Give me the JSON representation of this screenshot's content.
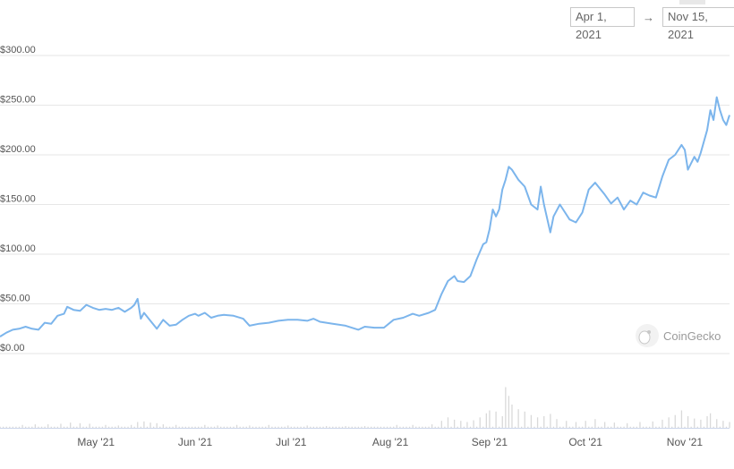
{
  "date_range": {
    "start": "Apr 1, 2021",
    "arrow": "→",
    "end": "Nov 15, 2021"
  },
  "watermark": {
    "text": "CoinGecko",
    "icon": "gecko-logo-icon"
  },
  "colors": {
    "price_line": "#7cb5ec",
    "volume_bar": "#d9d9d9",
    "grid": "#e6e6e6",
    "axis": "#ccd6eb"
  },
  "chart_data": {
    "type": "line",
    "title": "",
    "xlabel": "",
    "ylabel": "",
    "ylim": [
      0,
      300
    ],
    "y_ticks": [
      {
        "value": 300,
        "label": "$300.00"
      },
      {
        "value": 250,
        "label": "$250.00"
      },
      {
        "value": 200,
        "label": "$200.00"
      },
      {
        "value": 150,
        "label": "$150.00"
      },
      {
        "value": 100,
        "label": "$100.00"
      },
      {
        "value": 50,
        "label": "$50.00"
      },
      {
        "value": 0,
        "label": "$0.00"
      }
    ],
    "x_ticks": [
      {
        "date": "2021-05-01",
        "label": "May '21"
      },
      {
        "date": "2021-06-01",
        "label": "Jun '21"
      },
      {
        "date": "2021-07-01",
        "label": "Jul '21"
      },
      {
        "date": "2021-08-01",
        "label": "Aug '21"
      },
      {
        "date": "2021-09-01",
        "label": "Sep '21"
      },
      {
        "date": "2021-10-01",
        "label": "Oct '21"
      },
      {
        "date": "2021-11-01",
        "label": "Nov '21"
      }
    ],
    "grid": true,
    "legend": "none",
    "series": [
      {
        "values": [
          [
            "2021-04-01",
            17
          ],
          [
            "2021-04-03",
            21
          ],
          [
            "2021-04-05",
            24
          ],
          [
            "2021-04-07",
            25
          ],
          [
            "2021-04-09",
            27
          ],
          [
            "2021-04-11",
            25
          ],
          [
            "2021-04-13",
            24
          ],
          [
            "2021-04-15",
            31
          ],
          [
            "2021-04-17",
            30
          ],
          [
            "2021-04-19",
            38
          ],
          [
            "2021-04-21",
            40
          ],
          [
            "2021-04-22",
            47
          ],
          [
            "2021-04-24",
            44
          ],
          [
            "2021-04-26",
            43
          ],
          [
            "2021-04-28",
            49
          ],
          [
            "2021-04-30",
            46
          ],
          [
            "2021-05-02",
            44
          ],
          [
            "2021-05-04",
            45
          ],
          [
            "2021-05-06",
            44
          ],
          [
            "2021-05-08",
            46
          ],
          [
            "2021-05-10",
            42
          ],
          [
            "2021-05-12",
            46
          ],
          [
            "2021-05-13",
            49
          ],
          [
            "2021-05-14",
            55
          ],
          [
            "2021-05-15",
            35
          ],
          [
            "2021-05-16",
            41
          ],
          [
            "2021-05-18",
            33
          ],
          [
            "2021-05-20",
            25
          ],
          [
            "2021-05-22",
            34
          ],
          [
            "2021-05-24",
            28
          ],
          [
            "2021-05-26",
            29
          ],
          [
            "2021-05-28",
            34
          ],
          [
            "2021-05-30",
            38
          ],
          [
            "2021-06-01",
            40
          ],
          [
            "2021-06-02",
            38
          ],
          [
            "2021-06-04",
            41
          ],
          [
            "2021-06-06",
            36
          ],
          [
            "2021-06-08",
            38
          ],
          [
            "2021-06-10",
            39
          ],
          [
            "2021-06-13",
            38
          ],
          [
            "2021-06-16",
            35
          ],
          [
            "2021-06-18",
            28
          ],
          [
            "2021-06-21",
            30
          ],
          [
            "2021-06-24",
            31
          ],
          [
            "2021-06-27",
            33
          ],
          [
            "2021-06-30",
            34
          ],
          [
            "2021-07-03",
            34
          ],
          [
            "2021-07-06",
            33
          ],
          [
            "2021-07-08",
            35
          ],
          [
            "2021-07-10",
            32
          ],
          [
            "2021-07-14",
            30
          ],
          [
            "2021-07-18",
            28
          ],
          [
            "2021-07-21",
            25
          ],
          [
            "2021-07-22",
            24
          ],
          [
            "2021-07-24",
            27
          ],
          [
            "2021-07-27",
            26
          ],
          [
            "2021-07-30",
            26
          ],
          [
            "2021-08-02",
            34
          ],
          [
            "2021-08-05",
            36
          ],
          [
            "2021-08-08",
            40
          ],
          [
            "2021-08-10",
            38
          ],
          [
            "2021-08-13",
            41
          ],
          [
            "2021-08-15",
            44
          ],
          [
            "2021-08-17",
            60
          ],
          [
            "2021-08-19",
            73
          ],
          [
            "2021-08-21",
            78
          ],
          [
            "2021-08-22",
            73
          ],
          [
            "2021-08-24",
            72
          ],
          [
            "2021-08-26",
            78
          ],
          [
            "2021-08-28",
            95
          ],
          [
            "2021-08-30",
            110
          ],
          [
            "2021-08-31",
            112
          ],
          [
            "2021-09-01",
            125
          ],
          [
            "2021-09-02",
            145
          ],
          [
            "2021-09-03",
            138
          ],
          [
            "2021-09-04",
            145
          ],
          [
            "2021-09-05",
            165
          ],
          [
            "2021-09-06",
            175
          ],
          [
            "2021-09-07",
            188
          ],
          [
            "2021-09-08",
            185
          ],
          [
            "2021-09-10",
            175
          ],
          [
            "2021-09-12",
            168
          ],
          [
            "2021-09-14",
            150
          ],
          [
            "2021-09-16",
            145
          ],
          [
            "2021-09-17",
            168
          ],
          [
            "2021-09-18",
            150
          ],
          [
            "2021-09-20",
            122
          ],
          [
            "2021-09-21",
            138
          ],
          [
            "2021-09-23",
            150
          ],
          [
            "2021-09-26",
            135
          ],
          [
            "2021-09-28",
            132
          ],
          [
            "2021-09-30",
            142
          ],
          [
            "2021-10-02",
            165
          ],
          [
            "2021-10-04",
            172
          ],
          [
            "2021-10-07",
            160
          ],
          [
            "2021-10-09",
            151
          ],
          [
            "2021-10-11",
            157
          ],
          [
            "2021-10-13",
            145
          ],
          [
            "2021-10-15",
            154
          ],
          [
            "2021-10-17",
            150
          ],
          [
            "2021-10-19",
            162
          ],
          [
            "2021-10-21",
            159
          ],
          [
            "2021-10-23",
            157
          ],
          [
            "2021-10-25",
            178
          ],
          [
            "2021-10-27",
            195
          ],
          [
            "2021-10-29",
            200
          ],
          [
            "2021-10-31",
            210
          ],
          [
            "2021-11-01",
            205
          ],
          [
            "2021-11-02",
            185
          ],
          [
            "2021-11-04",
            198
          ],
          [
            "2021-11-05",
            193
          ],
          [
            "2021-11-06",
            202
          ],
          [
            "2021-11-08",
            225
          ],
          [
            "2021-11-09",
            245
          ],
          [
            "2021-11-10",
            235
          ],
          [
            "2021-11-11",
            258
          ],
          [
            "2021-11-12",
            245
          ],
          [
            "2021-11-13",
            235
          ],
          [
            "2021-11-14",
            230
          ],
          [
            "2021-11-15",
            240
          ]
        ]
      }
    ],
    "volume": {
      "max": 100,
      "values": [
        [
          "2021-04-08",
          5
        ],
        [
          "2021-04-12",
          6
        ],
        [
          "2021-04-16",
          6
        ],
        [
          "2021-04-20",
          7
        ],
        [
          "2021-04-23",
          9
        ],
        [
          "2021-04-26",
          8
        ],
        [
          "2021-04-29",
          7
        ],
        [
          "2021-05-04",
          5
        ],
        [
          "2021-05-08",
          4
        ],
        [
          "2021-05-12",
          5
        ],
        [
          "2021-05-14",
          10
        ],
        [
          "2021-05-16",
          11
        ],
        [
          "2021-05-18",
          9
        ],
        [
          "2021-05-20",
          8
        ],
        [
          "2021-05-22",
          6
        ],
        [
          "2021-05-26",
          5
        ],
        [
          "2021-06-04",
          5
        ],
        [
          "2021-06-08",
          4
        ],
        [
          "2021-06-14",
          5
        ],
        [
          "2021-06-18",
          4
        ],
        [
          "2021-06-24",
          5
        ],
        [
          "2021-06-30",
          4
        ],
        [
          "2021-07-06",
          4
        ],
        [
          "2021-07-12",
          3
        ],
        [
          "2021-07-18",
          3
        ],
        [
          "2021-07-24",
          3
        ],
        [
          "2021-08-03",
          5
        ],
        [
          "2021-08-08",
          5
        ],
        [
          "2021-08-14",
          6
        ],
        [
          "2021-08-17",
          12
        ],
        [
          "2021-08-19",
          18
        ],
        [
          "2021-08-21",
          14
        ],
        [
          "2021-08-23",
          12
        ],
        [
          "2021-08-25",
          10
        ],
        [
          "2021-08-27",
          13
        ],
        [
          "2021-08-29",
          18
        ],
        [
          "2021-08-31",
          25
        ],
        [
          "2021-09-01",
          30
        ],
        [
          "2021-09-03",
          28
        ],
        [
          "2021-09-05",
          20
        ],
        [
          "2021-09-06",
          70
        ],
        [
          "2021-09-07",
          55
        ],
        [
          "2021-09-08",
          40
        ],
        [
          "2021-09-10",
          32
        ],
        [
          "2021-09-12",
          28
        ],
        [
          "2021-09-14",
          22
        ],
        [
          "2021-09-16",
          18
        ],
        [
          "2021-09-18",
          20
        ],
        [
          "2021-09-20",
          24
        ],
        [
          "2021-09-22",
          15
        ],
        [
          "2021-09-25",
          12
        ],
        [
          "2021-09-28",
          10
        ],
        [
          "2021-10-01",
          12
        ],
        [
          "2021-10-04",
          15
        ],
        [
          "2021-10-07",
          10
        ],
        [
          "2021-10-10",
          9
        ],
        [
          "2021-10-14",
          8
        ],
        [
          "2021-10-18",
          10
        ],
        [
          "2021-10-22",
          11
        ],
        [
          "2021-10-25",
          14
        ],
        [
          "2021-10-27",
          18
        ],
        [
          "2021-10-29",
          22
        ],
        [
          "2021-10-31",
          30
        ],
        [
          "2021-11-02",
          20
        ],
        [
          "2021-11-04",
          16
        ],
        [
          "2021-11-06",
          14
        ],
        [
          "2021-11-08",
          20
        ],
        [
          "2021-11-09",
          25
        ],
        [
          "2021-11-11",
          15
        ],
        [
          "2021-11-13",
          12
        ],
        [
          "2021-11-15",
          10
        ]
      ]
    }
  }
}
